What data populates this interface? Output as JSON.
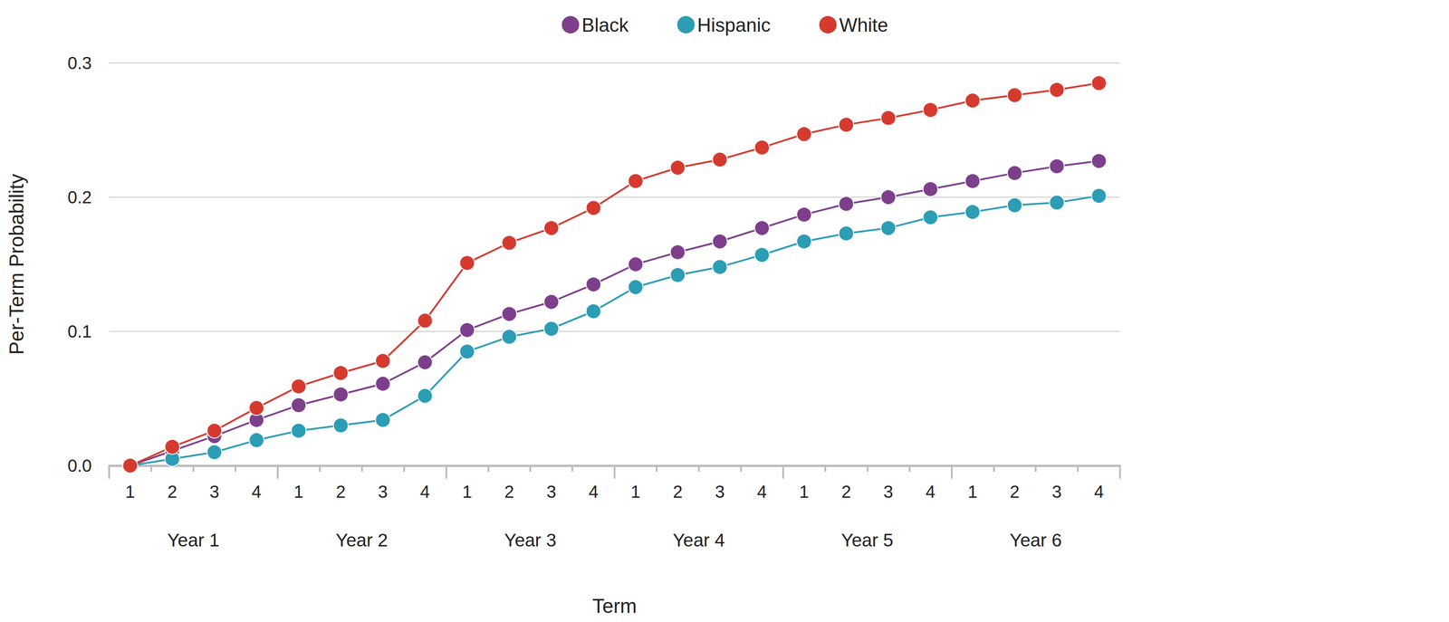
{
  "chart_data": {
    "type": "line",
    "x_label": "Term",
    "y_label": "Per-Term Probability",
    "categories": [
      "1",
      "2",
      "3",
      "4",
      "1",
      "2",
      "3",
      "4",
      "1",
      "2",
      "3",
      "4",
      "1",
      "2",
      "3",
      "4",
      "1",
      "2",
      "3",
      "4",
      "1",
      "2",
      "3",
      "4"
    ],
    "x_groups": [
      "Year 1",
      "Year 2",
      "Year 3",
      "Year 4",
      "Year 5",
      "Year 6"
    ],
    "series": [
      {
        "name": "Black",
        "color": "#7d3f8c",
        "marker": "circle",
        "line_style": "solid",
        "values": [
          0,
          0.011,
          0.022,
          0.034,
          0.045,
          0.053,
          0.061,
          0.077,
          0.101,
          0.113,
          0.122,
          0.135,
          0.15,
          0.159,
          0.167,
          0.177,
          0.187,
          0.195,
          0.2,
          0.206,
          0.212,
          0.218,
          0.223,
          0.227
        ]
      },
      {
        "name": "Hispanic",
        "color": "#2b9db5",
        "marker": "circle",
        "line_style": "solid",
        "values": [
          0,
          0.005,
          0.01,
          0.019,
          0.026,
          0.03,
          0.034,
          0.052,
          0.085,
          0.096,
          0.102,
          0.115,
          0.133,
          0.142,
          0.148,
          0.157,
          0.167,
          0.173,
          0.177,
          0.185,
          0.189,
          0.194,
          0.196,
          0.201
        ]
      },
      {
        "name": "White",
        "color": "#d63a2f",
        "marker": "circle",
        "line_style": "solid",
        "values": [
          0,
          0.014,
          0.026,
          0.043,
          0.059,
          0.069,
          0.078,
          0.108,
          0.151,
          0.166,
          0.177,
          0.192,
          0.212,
          0.222,
          0.228,
          0.237,
          0.247,
          0.254,
          0.259,
          0.265,
          0.272,
          0.276,
          0.28,
          0.285
        ]
      }
    ],
    "ylim": [
      0,
      0.3
    ],
    "yticks": [
      {
        "value": 0,
        "label": "0.0"
      },
      0.1,
      0.2,
      0.3
    ],
    "grid": true,
    "legend": "top"
  }
}
